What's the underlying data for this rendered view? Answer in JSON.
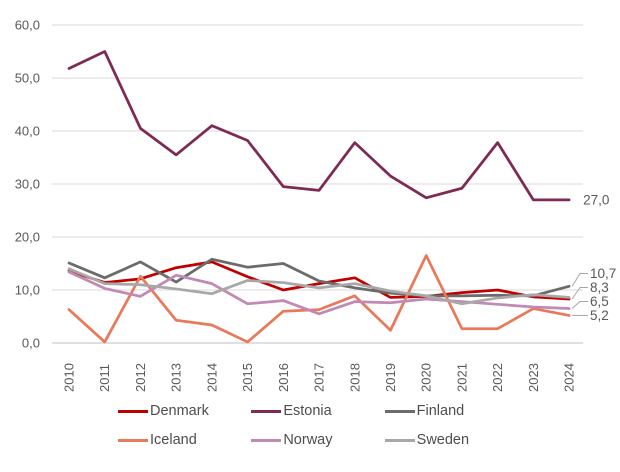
{
  "chart_data": {
    "type": "line",
    "title": "",
    "xlabel": "",
    "ylabel": "",
    "x_labels": [
      "2010",
      "2011",
      "2012",
      "2013",
      "2014",
      "2015",
      "2016",
      "2017",
      "2018",
      "2019",
      "2020",
      "2021",
      "2022",
      "2023",
      "2024"
    ],
    "y_ticks": [
      "0,0",
      "10,0",
      "20,0",
      "30,0",
      "40,0",
      "50,0",
      "60,0"
    ],
    "ylim": [
      0,
      60
    ],
    "grid": true,
    "legend_position": "bottom",
    "decimal_separator": ",",
    "series": [
      {
        "name": "Denmark",
        "color": "#c00000",
        "values": [
          13.6,
          11.4,
          12.1,
          14.2,
          15.3,
          12.5,
          10.0,
          11.2,
          12.3,
          8.6,
          8.8,
          9.5,
          10.0,
          8.7,
          8.3
        ],
        "end_label": "8,3"
      },
      {
        "name": "Estonia",
        "color": "#7d2a55",
        "values": [
          51.8,
          55.0,
          40.5,
          35.5,
          41.0,
          38.2,
          29.5,
          28.8,
          37.8,
          31.5,
          27.4,
          29.2,
          37.8,
          27.0,
          27.0
        ],
        "end_label": "27,0"
      },
      {
        "name": "Finland",
        "color": "#6b6b6b",
        "values": [
          15.1,
          12.3,
          15.3,
          11.5,
          15.8,
          14.3,
          15.0,
          11.7,
          10.4,
          9.4,
          8.9,
          8.9,
          9.0,
          8.9,
          10.7
        ],
        "end_label": "10,7"
      },
      {
        "name": "Iceland",
        "color": "#e8795a",
        "values": [
          6.3,
          0.2,
          12.6,
          4.3,
          3.4,
          0.2,
          6.0,
          6.3,
          8.9,
          2.4,
          16.5,
          2.7,
          2.7,
          6.5,
          5.2
        ],
        "end_label": "5,2"
      },
      {
        "name": "Norway",
        "color": "#c08ab4",
        "values": [
          13.4,
          10.3,
          8.8,
          12.8,
          11.2,
          7.4,
          8.0,
          5.5,
          7.8,
          7.6,
          8.3,
          7.8,
          7.3,
          6.8,
          6.5
        ],
        "end_label": "6,5"
      },
      {
        "name": "Sweden",
        "color": "#a8a8a8",
        "values": [
          14.0,
          11.2,
          11.0,
          10.2,
          9.3,
          11.8,
          11.4,
          10.4,
          11.2,
          9.8,
          8.9,
          7.4,
          8.5,
          9.1,
          8.6
        ],
        "end_label": null
      }
    ],
    "colors": {
      "axis_text": "#595959",
      "gridline": "#d9d9d9",
      "axis_line": "#bfbfbf",
      "leader_line": "#a6a6a6",
      "data_label_text": "#595959"
    }
  }
}
